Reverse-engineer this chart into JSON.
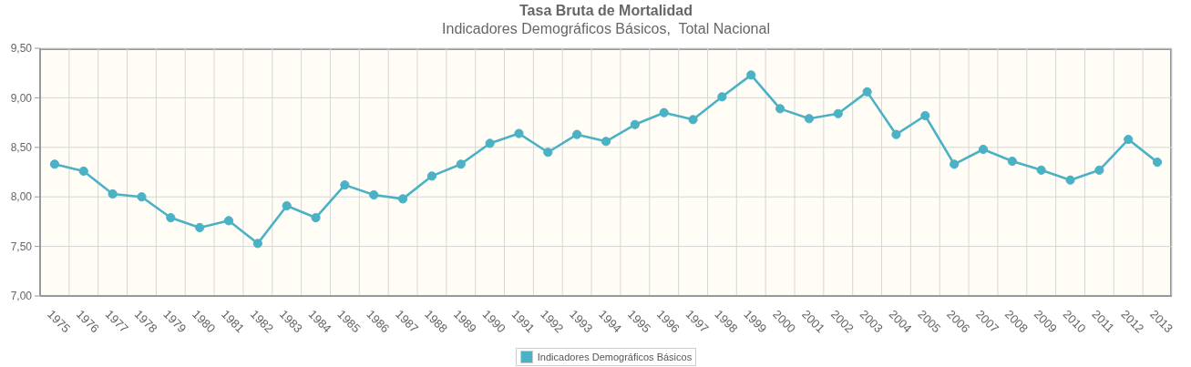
{
  "chart_data": {
    "type": "line",
    "title": "Tasa Bruta de Mortalidad",
    "subtitle": "Indicadores Demográficos Básicos,  Total Nacional",
    "categories": [
      "1975",
      "1976",
      "1977",
      "1978",
      "1979",
      "1980",
      "1981",
      "1982",
      "1983",
      "1984",
      "1985",
      "1986",
      "1987",
      "1988",
      "1989",
      "1990",
      "1991",
      "1992",
      "1993",
      "1994",
      "1995",
      "1996",
      "1997",
      "1998",
      "1999",
      "2000",
      "2001",
      "2002",
      "2003",
      "2004",
      "2005",
      "2006",
      "2007",
      "2008",
      "2009",
      "2010",
      "2011",
      "2012",
      "2013"
    ],
    "series": [
      {
        "name": "Indicadores Demográficos Básicos",
        "color": "#4bb2c5",
        "values": [
          8.33,
          8.26,
          8.03,
          8.0,
          7.79,
          7.69,
          7.76,
          7.53,
          7.91,
          7.79,
          8.12,
          8.02,
          7.98,
          8.21,
          8.33,
          8.54,
          8.64,
          8.45,
          8.63,
          8.56,
          8.73,
          8.85,
          8.78,
          9.01,
          9.23,
          8.89,
          8.79,
          8.84,
          9.06,
          8.63,
          8.82,
          8.33,
          8.48,
          8.36,
          8.27,
          8.17,
          8.27,
          8.58,
          8.35
        ]
      }
    ],
    "ylim": [
      7,
      9.5
    ],
    "yticks": [
      {
        "value": 7,
        "label": "7,00"
      },
      {
        "value": 7.5,
        "label": "7,50"
      },
      {
        "value": 8,
        "label": "8,00"
      },
      {
        "value": 8.5,
        "label": "8,50"
      },
      {
        "value": 9,
        "label": "9,00"
      },
      {
        "value": 9.5,
        "label": "9,50"
      }
    ],
    "grid": true,
    "legend": "bottom",
    "marker": "circle"
  }
}
